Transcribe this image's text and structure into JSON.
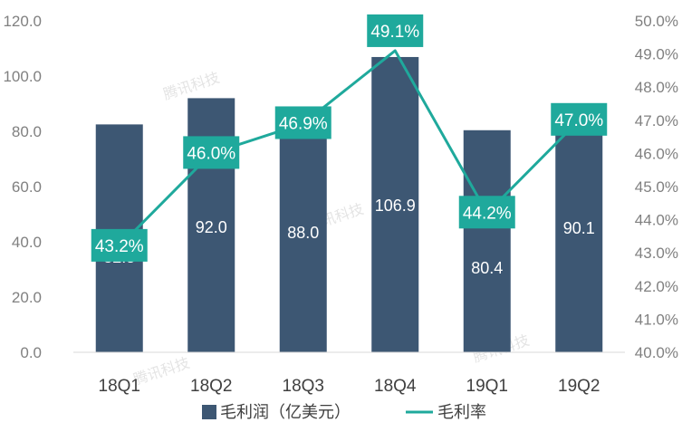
{
  "chart_data": {
    "type": "bar",
    "categories": [
      "18Q1",
      "18Q2",
      "18Q3",
      "18Q4",
      "19Q1",
      "19Q2"
    ],
    "series": [
      {
        "name": "毛利润（亿美元）",
        "type": "bar",
        "axis": "left",
        "values": [
          82.5,
          92.0,
          88.0,
          106.9,
          80.4,
          90.1
        ],
        "labels": [
          "82.5",
          "92.0",
          "88.0",
          "106.9",
          "80.4",
          "90.1"
        ]
      },
      {
        "name": "毛利率",
        "type": "line",
        "axis": "right",
        "values": [
          43.2,
          46.0,
          46.9,
          49.1,
          44.2,
          47.0
        ],
        "labels": [
          "43.2%",
          "46.0%",
          "46.9%",
          "49.1%",
          "44.2%",
          "47.0%"
        ]
      }
    ],
    "ylim_left": [
      0,
      120
    ],
    "ylim_right": [
      40,
      50
    ],
    "left_ticks": [
      "0.0",
      "20.0",
      "40.0",
      "60.0",
      "80.0",
      "100.0",
      "120.0"
    ],
    "right_ticks": [
      "40.0%",
      "41.0%",
      "42.0%",
      "43.0%",
      "44.0%",
      "45.0%",
      "46.0%",
      "47.0%",
      "48.0%",
      "49.0%",
      "50.0%"
    ],
    "legend_position": "bottom",
    "grid": false,
    "watermark": "腾讯科技",
    "colors": {
      "bar": "#3d5773",
      "line": "#1fa99c",
      "label_box": "#1fa99c",
      "label_text": "#ffffff",
      "bar_label_text": "#ffffff",
      "axis_text": "#808080",
      "watermark": "#e4e4e4"
    }
  }
}
